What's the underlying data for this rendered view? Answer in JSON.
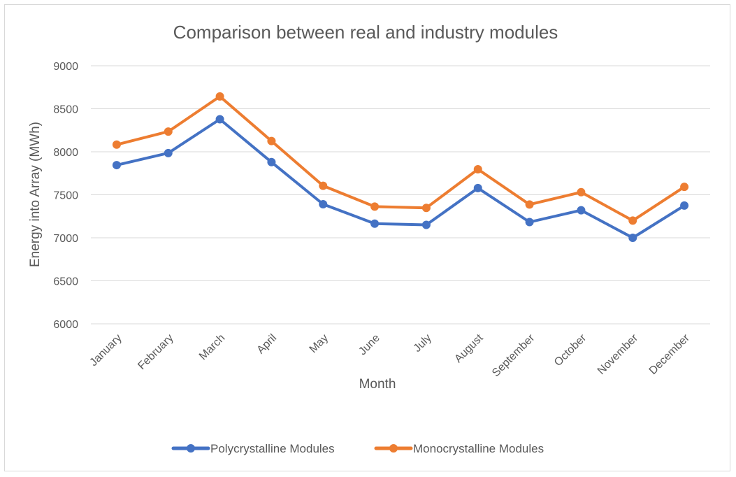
{
  "chart_data": {
    "type": "line",
    "title": "Comparison between real and industry modules",
    "xlabel": "Month",
    "ylabel": "Energy into Array (MWh)",
    "ylim": [
      6000,
      9000
    ],
    "yticks": [
      "6000",
      "6500",
      "7000",
      "7500",
      "8000",
      "8500",
      "9000"
    ],
    "grid": true,
    "legend_position": "bottom",
    "categories": [
      "January",
      "February",
      "March",
      "April",
      "May",
      "June",
      "July",
      "August",
      "September",
      "October",
      "November",
      "December"
    ],
    "series": [
      {
        "name": "Polycrystalline Modules",
        "color": "#4472c4",
        "values": [
          7845,
          7985,
          8378,
          7880,
          7390,
          7165,
          7150,
          7578,
          7183,
          7320,
          7000,
          7375
        ]
      },
      {
        "name": "Monocrystalline Modules",
        "color": "#ed7d31",
        "values": [
          8083,
          8235,
          8643,
          8125,
          7605,
          7363,
          7348,
          7797,
          7387,
          7530,
          7200,
          7592
        ]
      }
    ]
  }
}
